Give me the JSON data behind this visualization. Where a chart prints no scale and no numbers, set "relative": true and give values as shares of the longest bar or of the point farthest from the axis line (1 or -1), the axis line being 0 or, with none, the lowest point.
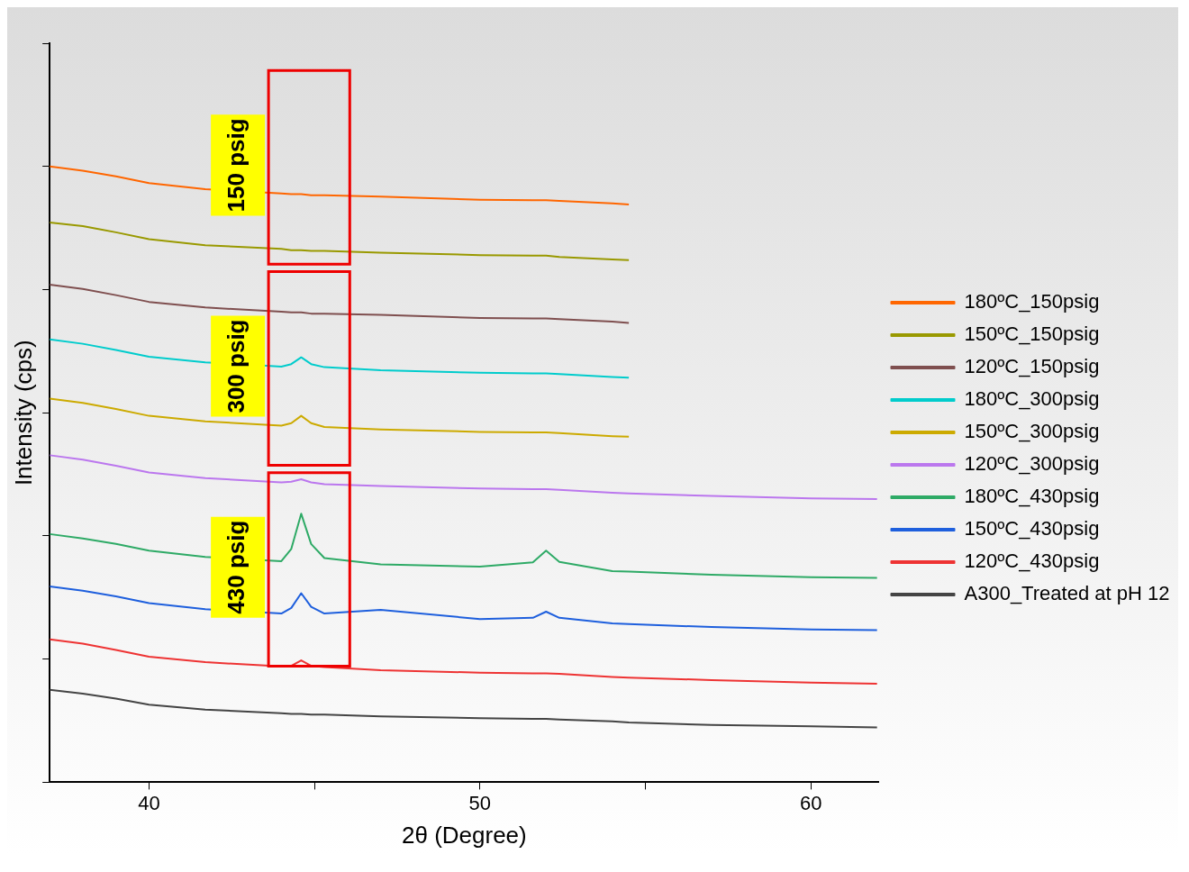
{
  "chart_data": {
    "type": "line",
    "relative": true,
    "xlabel": "2θ (Degree)",
    "ylabel": "Intensity (cps)",
    "x": [
      37,
      38,
      39,
      40,
      41.7,
      44,
      44.3,
      44.6,
      44.9,
      45.3,
      47,
      50,
      51.6,
      52,
      52.4,
      54,
      54.5,
      57,
      60,
      62
    ],
    "xlim": [
      37,
      62.05
    ],
    "xticks": [
      40,
      {
        "value": 45,
        "label": null
      },
      50,
      {
        "value": 55,
        "label": null
      },
      60
    ],
    "grid": false,
    "legend": "right",
    "marker": "none",
    "line_style": "solid",
    "series": [
      {
        "name": "180ºC_150psig",
        "color": "#ff6600",
        "values": [
          1.0,
          0.993,
          0.984,
          0.973,
          0.963,
          0.956,
          0.955,
          0.955,
          0.953,
          0.953,
          0.951,
          0.946,
          0.945,
          0.945,
          0.944,
          0.94,
          0.938,
          null,
          null,
          null
        ]
      },
      {
        "name": "150ºC_150psig",
        "color": "#999900",
        "values": [
          0.909,
          0.903,
          0.893,
          0.882,
          0.872,
          0.866,
          0.864,
          0.864,
          0.863,
          0.863,
          0.86,
          0.856,
          0.855,
          0.855,
          0.853,
          0.849,
          0.848,
          null,
          null,
          null
        ]
      },
      {
        "name": "120ºC_150psig",
        "color": "#7f4f4f",
        "values": [
          0.808,
          0.801,
          0.791,
          0.78,
          0.771,
          0.764,
          0.763,
          0.763,
          0.761,
          0.761,
          0.759,
          0.754,
          0.753,
          0.753,
          0.752,
          0.748,
          0.746,
          null,
          null,
          null
        ]
      },
      {
        "name": "180ºC_300psig",
        "color": "#00cccc",
        "values": [
          0.719,
          0.712,
          0.702,
          0.691,
          0.682,
          0.675,
          0.679,
          0.69,
          0.679,
          0.674,
          0.669,
          0.665,
          0.664,
          0.664,
          0.663,
          0.658,
          0.657,
          null,
          null,
          null
        ]
      },
      {
        "name": "150ºC_300psig",
        "color": "#ccaa00",
        "values": [
          0.623,
          0.616,
          0.606,
          0.595,
          0.586,
          0.579,
          0.583,
          0.595,
          0.583,
          0.577,
          0.573,
          0.569,
          0.568,
          0.568,
          0.567,
          0.562,
          0.561,
          null,
          null,
          null
        ]
      },
      {
        "name": "120ºC_300psig",
        "color": "#bb77ee",
        "values": [
          0.531,
          0.524,
          0.514,
          0.503,
          0.494,
          0.487,
          0.488,
          0.492,
          0.487,
          0.484,
          0.481,
          0.477,
          0.476,
          0.476,
          0.475,
          0.47,
          0.469,
          0.465,
          0.461,
          0.46
        ]
      },
      {
        "name": "180ºC_430psig",
        "color": "#2eaa66",
        "values": [
          0.403,
          0.396,
          0.387,
          0.376,
          0.366,
          0.359,
          0.379,
          0.436,
          0.387,
          0.364,
          0.354,
          0.35,
          0.357,
          0.376,
          0.358,
          0.343,
          0.342,
          0.337,
          0.333,
          0.332
        ]
      },
      {
        "name": "150ºC_430psig",
        "color": "#1e5fdd",
        "values": [
          0.318,
          0.311,
          0.302,
          0.291,
          0.281,
          0.274,
          0.283,
          0.307,
          0.285,
          0.274,
          0.28,
          0.265,
          0.267,
          0.277,
          0.267,
          0.258,
          0.257,
          0.252,
          0.248,
          0.247
        ]
      },
      {
        "name": "120ºC_430psig",
        "color": "#ee3333",
        "values": [
          0.232,
          0.225,
          0.215,
          0.204,
          0.195,
          0.188,
          0.189,
          0.198,
          0.189,
          0.187,
          0.182,
          0.178,
          0.177,
          0.177,
          0.176,
          0.171,
          0.17,
          0.166,
          0.162,
          0.16
        ]
      },
      {
        "name": "A300_Treated at pH 12",
        "color": "#444444",
        "values": [
          0.15,
          0.144,
          0.136,
          0.126,
          0.118,
          0.112,
          0.111,
          0.111,
          0.11,
          0.11,
          0.107,
          0.104,
          0.103,
          0.103,
          0.102,
          0.099,
          0.097,
          0.093,
          0.091,
          0.089
        ]
      }
    ],
    "annotations": [
      "150 psig",
      "300 psig",
      "430 psig"
    ]
  }
}
